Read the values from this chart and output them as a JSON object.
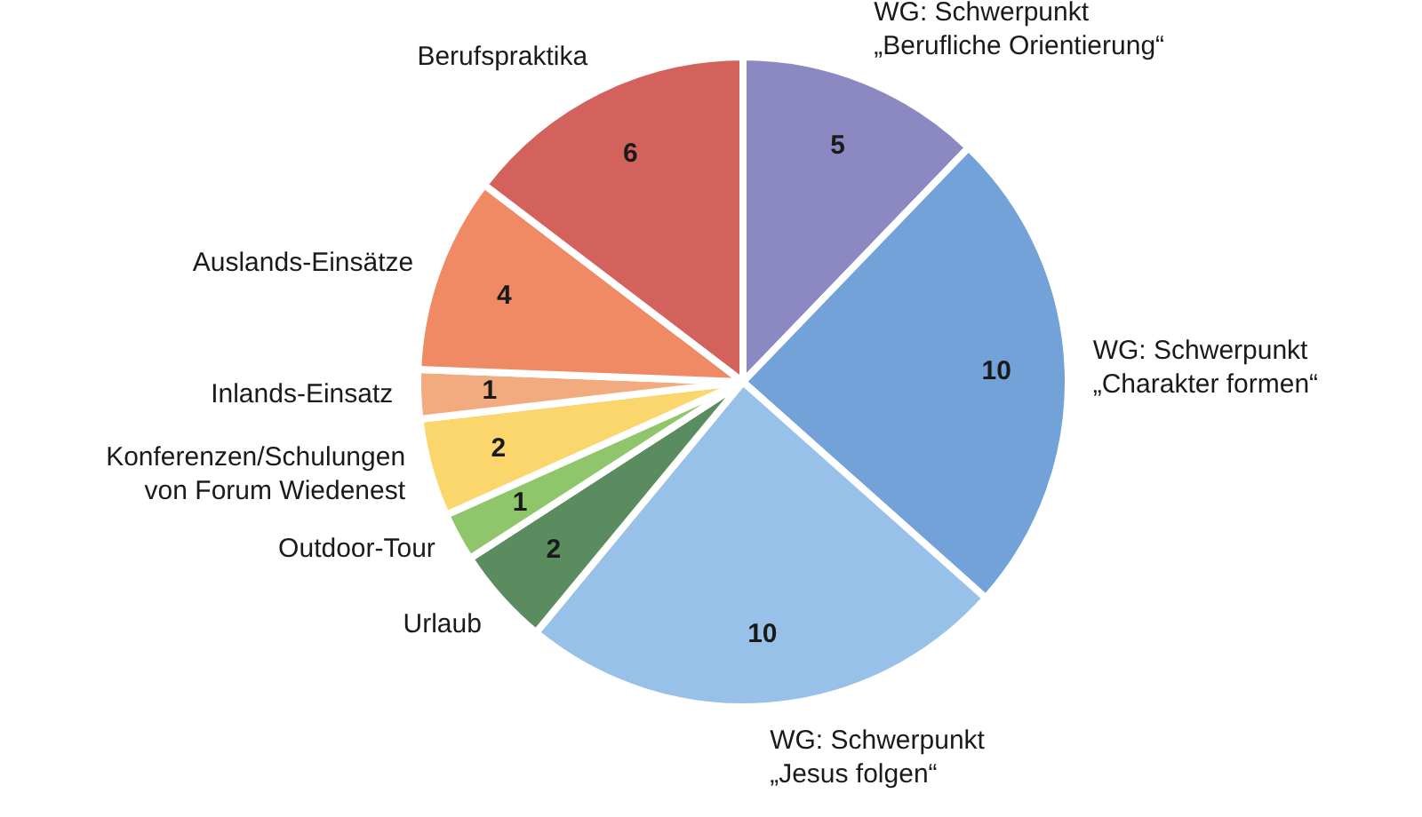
{
  "chart_data": {
    "type": "pie",
    "categories": [
      "WG: Schwerpunkt\n„Berufliche Orientierung“",
      "WG: Schwerpunkt\n„Charakter formen“",
      "WG: Schwerpunkt\n„Jesus folgen“",
      "Urlaub",
      "Outdoor-Tour",
      "Konferenzen/Schulungen\nvon Forum Wiedenest",
      "Inlands-Einsatz",
      "Auslands-Einsätze",
      "Berufspraktika"
    ],
    "values": [
      5,
      10,
      10,
      2,
      1,
      2,
      1,
      4,
      6
    ],
    "colors": [
      "#8b88c2",
      "#72a2d8",
      "#97c1e8",
      "#5b8c5f",
      "#8fc66c",
      "#fbd66c",
      "#f2ab7e",
      "#ef8a64",
      "#d4625c"
    ],
    "data_labels": true,
    "legend": false
  }
}
